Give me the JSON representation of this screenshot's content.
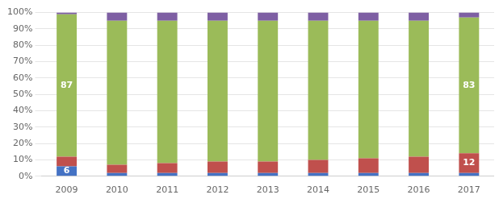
{
  "chart_data": {
    "type": "bar",
    "stacked": true,
    "grid": true,
    "categories": [
      "2009",
      "2010",
      "2011",
      "2012",
      "2013",
      "2014",
      "2015",
      "2016",
      "2017"
    ],
    "series": [
      {
        "color": "#4472C4",
        "values": [
          6,
          2,
          2,
          2,
          2,
          2,
          2,
          2,
          2
        ],
        "value_labels": [
          "6",
          null,
          null,
          null,
          null,
          null,
          null,
          null,
          null
        ]
      },
      {
        "color": "#C0504D",
        "values": [
          6,
          5,
          6,
          7,
          7,
          8,
          9,
          10,
          12
        ],
        "value_labels": [
          null,
          null,
          null,
          null,
          null,
          null,
          null,
          null,
          "12"
        ]
      },
      {
        "color": "#9BBB59",
        "values": [
          87,
          88,
          87,
          86,
          86,
          85,
          84,
          83,
          83
        ],
        "value_labels": [
          "87",
          null,
          null,
          null,
          null,
          null,
          null,
          null,
          "83"
        ]
      },
      {
        "color": "#7E5FA3",
        "values": [
          1,
          5,
          5,
          5,
          5,
          5,
          5,
          5,
          3
        ]
      }
    ],
    "ylim": [
      0,
      100
    ],
    "yticks": [
      {
        "value": 0,
        "label": "0%"
      },
      {
        "value": 10,
        "label": "10%"
      },
      {
        "value": 20,
        "label": "20%"
      },
      {
        "value": 30,
        "label": "30%"
      },
      {
        "value": 40,
        "label": "40%"
      },
      {
        "value": 50,
        "label": "50%"
      },
      {
        "value": 60,
        "label": "60%"
      },
      {
        "value": 70,
        "label": "70%"
      },
      {
        "value": 80,
        "label": "80%"
      },
      {
        "value": 90,
        "label": "90%"
      },
      {
        "value": 100,
        "label": "100%"
      }
    ]
  }
}
